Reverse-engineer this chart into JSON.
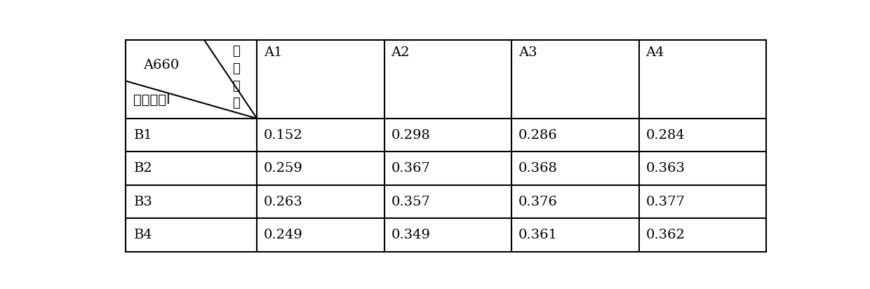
{
  "col_headers": [
    "A1",
    "A2",
    "A3",
    "A4"
  ],
  "row_headers": [
    "B1",
    "B2",
    "B3",
    "B4"
  ],
  "data": [
    [
      "0.152",
      "0.298",
      "0.286",
      "0.284"
    ],
    [
      "0.259",
      "0.367",
      "0.368",
      "0.363"
    ],
    [
      "0.263",
      "0.357",
      "0.376",
      "0.377"
    ],
    [
      "0.249",
      "0.349",
      "0.361",
      "0.362"
    ]
  ],
  "corner_label_a660": "A660",
  "corner_label_green": "绿化血红",
  "corner_label_enzyme": "辅　酶　I",
  "fig_width": 12.4,
  "fig_height": 4.12,
  "font_size": 14,
  "background_color": "#ffffff",
  "line_color": "#000000"
}
